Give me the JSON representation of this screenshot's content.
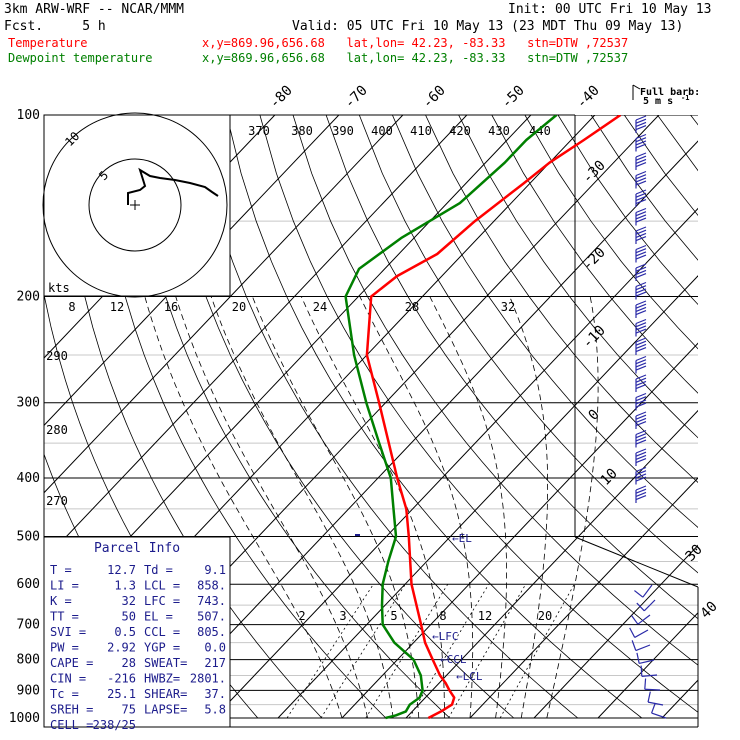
{
  "header": {
    "model": "3km ARW-WRF -- NCAR/MMM",
    "init": "Init: 00 UTC Fri 10 May 13",
    "fcst": "Fcst.     5 h",
    "valid": "Valid: 05 UTC Fri 10 May 13 (23 MDT Thu 09 May 13)",
    "rows": [
      {
        "name": "Temperature",
        "loc": "x,y=869.96,656.68   lat,lon= 42.23, -83.33   stn=DTW ,72537",
        "color": "#ff0000"
      },
      {
        "name": "Dewpoint temperature",
        "loc": "x,y=869.96,656.68   lat,lon= 42.23, -83.33   stn=DTW ,72537",
        "color": "#008000"
      }
    ]
  },
  "barb_legend": {
    "title": "Full barb:",
    "value": "5 m s",
    "sup": "-1"
  },
  "parcel": {
    "title": "Parcel Info",
    "rows": [
      [
        "T  =",
        "12.7",
        "Td  =",
        "9.1"
      ],
      [
        "LI =",
        "1.3",
        "LCL =",
        "858."
      ],
      [
        "K  =",
        "32",
        "LFC =",
        "743."
      ],
      [
        "TT =",
        "50",
        "EL  =",
        "507."
      ],
      [
        "SVI =",
        "0.5",
        "CCL =",
        "805."
      ],
      [
        "PW =",
        "2.92",
        "YGP =",
        "0.0"
      ],
      [
        "CAPE =",
        "28",
        "SWEAT=",
        "217"
      ],
      [
        "CIN =",
        "-216",
        "HWBZ=",
        "2801."
      ],
      [
        "Tc =",
        "25.1",
        "SHEAR=",
        "37."
      ],
      [
        "SREH =",
        "75",
        "LAPSE=",
        "5.8"
      ],
      [
        "CELL =",
        "238/25",
        "",
        ""
      ]
    ]
  },
  "markers": {
    "lfc": "LFC",
    "ccl": "CCL",
    "lcl": "LCL",
    "el": "EL"
  },
  "hodograph": {
    "unit": "kts",
    "ring_labels": [
      "5",
      "10"
    ],
    "speed_labels": [
      "8",
      "12",
      "16",
      "20",
      "24",
      "28",
      "32"
    ]
  },
  "chart_data": {
    "type": "line",
    "title": "",
    "ylabel": "",
    "pressure_levels": [
      100,
      200,
      300,
      400,
      500,
      600,
      700,
      800,
      900,
      1000
    ],
    "isotherm_labels": [
      "-80",
      "-70",
      "-60",
      "-50",
      "-40",
      "-30",
      "-20",
      "-10",
      "0",
      "10",
      "30",
      "40"
    ],
    "theta_labels": [
      "370",
      "380",
      "390",
      "400",
      "410",
      "420",
      "430",
      "440",
      "290",
      "280",
      "270"
    ],
    "mixing_ratio_labels": [
      "2",
      "3",
      "5",
      "8",
      "12",
      "20"
    ],
    "series": [
      {
        "name": "Temperature",
        "color": "#ff0000",
        "points": [
          [
            1000,
            13.5
          ],
          [
            975,
            14.5
          ],
          [
            950,
            15.2
          ],
          [
            925,
            14.5
          ],
          [
            900,
            12.7
          ],
          [
            875,
            11
          ],
          [
            850,
            9
          ],
          [
            800,
            5.5
          ],
          [
            750,
            1.8
          ],
          [
            700,
            -1.5
          ],
          [
            600,
            -9
          ],
          [
            500,
            -16.5
          ],
          [
            450,
            -21
          ],
          [
            400,
            -27
          ],
          [
            350,
            -33.5
          ],
          [
            300,
            -41
          ],
          [
            250,
            -50
          ],
          [
            200,
            -58
          ],
          [
            185,
            -57
          ],
          [
            170,
            -54
          ],
          [
            150,
            -53
          ],
          [
            130,
            -51
          ],
          [
            120,
            -50
          ],
          [
            110,
            -48
          ],
          [
            100,
            -46
          ]
        ]
      },
      {
        "name": "Dewpoint temperature",
        "color": "#008000",
        "points": [
          [
            1000,
            6.8
          ],
          [
            990,
            8
          ],
          [
            975,
            9
          ],
          [
            950,
            8.6
          ],
          [
            925,
            9.1
          ],
          [
            900,
            8.5
          ],
          [
            850,
            6
          ],
          [
            800,
            2.5
          ],
          [
            750,
            -3
          ],
          [
            700,
            -7.5
          ],
          [
            650,
            -10.5
          ],
          [
            600,
            -13.5
          ],
          [
            550,
            -16
          ],
          [
            500,
            -18.5
          ],
          [
            450,
            -23
          ],
          [
            400,
            -28
          ],
          [
            350,
            -35
          ],
          [
            300,
            -43
          ],
          [
            250,
            -52
          ],
          [
            200,
            -62
          ],
          [
            180,
            -64
          ],
          [
            160,
            -62
          ],
          [
            140,
            -58
          ],
          [
            120,
            -57
          ],
          [
            110,
            -57
          ],
          [
            100,
            -56
          ]
        ]
      }
    ]
  }
}
